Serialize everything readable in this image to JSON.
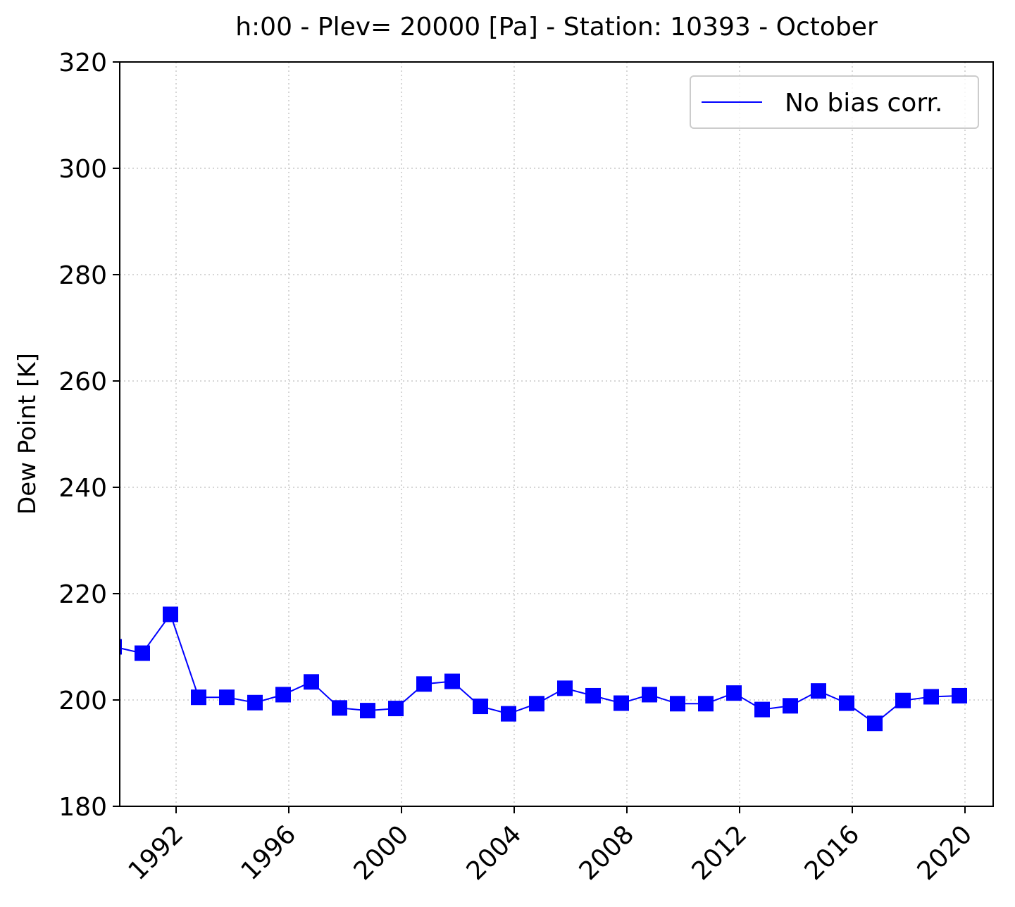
{
  "chart_data": {
    "type": "line",
    "title": "h:00 - Plev= 20000 [Pa] - Station: 10393 - October",
    "xlabel": "",
    "ylabel": "Dew Point [K]",
    "xlim": [
      1990.0,
      2021.0
    ],
    "ylim": [
      180,
      320
    ],
    "x_tick_labels": [
      "1992",
      "1996",
      "2000",
      "2004",
      "2008",
      "2012",
      "2016",
      "2020"
    ],
    "y_tick_labels": [
      "180",
      "200",
      "220",
      "240",
      "260",
      "280",
      "300",
      "320"
    ],
    "grid": true,
    "legend_position": "top-right",
    "series": [
      {
        "name": "No bias corr.",
        "color": "#0000ff",
        "marker": "square",
        "x": [
          1989.8,
          1990.8,
          1991.8,
          1992.8,
          1993.8,
          1994.8,
          1995.8,
          1996.8,
          1997.8,
          1998.8,
          1999.8,
          2000.8,
          2001.8,
          2002.8,
          2003.8,
          2004.8,
          2005.8,
          2006.8,
          2007.8,
          2008.8,
          2009.8,
          2010.8,
          2011.8,
          2012.8,
          2013.8,
          2014.8,
          2015.8,
          2016.8,
          2017.8,
          2018.8,
          2019.8
        ],
        "y": [
          210.0,
          208.8,
          216.1,
          200.5,
          200.5,
          199.5,
          201.0,
          203.4,
          198.5,
          198.0,
          198.4,
          203.0,
          203.5,
          198.8,
          197.4,
          199.3,
          202.2,
          200.8,
          199.4,
          201.0,
          199.3,
          199.3,
          201.3,
          198.2,
          198.9,
          201.7,
          199.4,
          195.6,
          199.9,
          200.6,
          200.8
        ]
      }
    ]
  }
}
